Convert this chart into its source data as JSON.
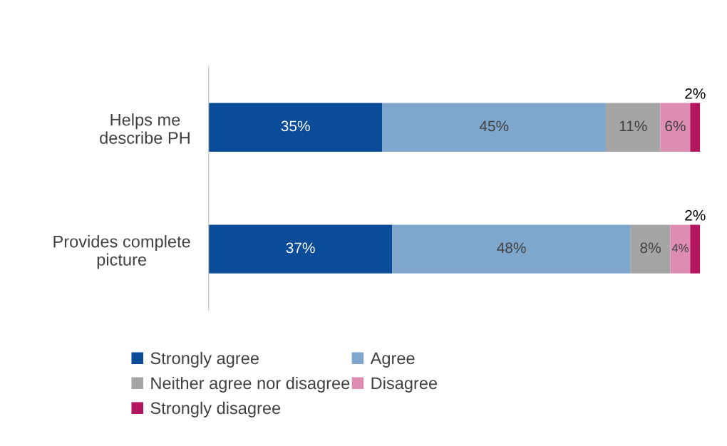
{
  "chart_data": {
    "type": "bar",
    "orientation": "horizontal",
    "stacked": true,
    "categories": [
      "Helps me\ndescribe PH",
      "Provides complete\npicture"
    ],
    "series": [
      {
        "name": "Strongly agree",
        "color": "#0a4c97",
        "values": [
          35,
          37
        ],
        "value_labels": [
          "35%",
          "37%"
        ]
      },
      {
        "name": "Agree",
        "color": "#7fa6cd",
        "values": [
          45,
          48
        ],
        "value_labels": [
          "45%",
          "48%"
        ]
      },
      {
        "name": "Neither agree nor disagree",
        "color": "#a5a5a5",
        "values": [
          11,
          8
        ],
        "value_labels": [
          "11%",
          "8%"
        ]
      },
      {
        "name": "Disagree",
        "color": "#dc8db1",
        "values": [
          6,
          4
        ],
        "value_labels": [
          "6%",
          "4%"
        ]
      },
      {
        "name": "Strongly disagree",
        "color": "#b3165e",
        "values": [
          2,
          2
        ],
        "value_labels": [
          "2%",
          "2%"
        ]
      }
    ],
    "tick_labels": "y",
    "grid": false,
    "legend": "bottom"
  }
}
